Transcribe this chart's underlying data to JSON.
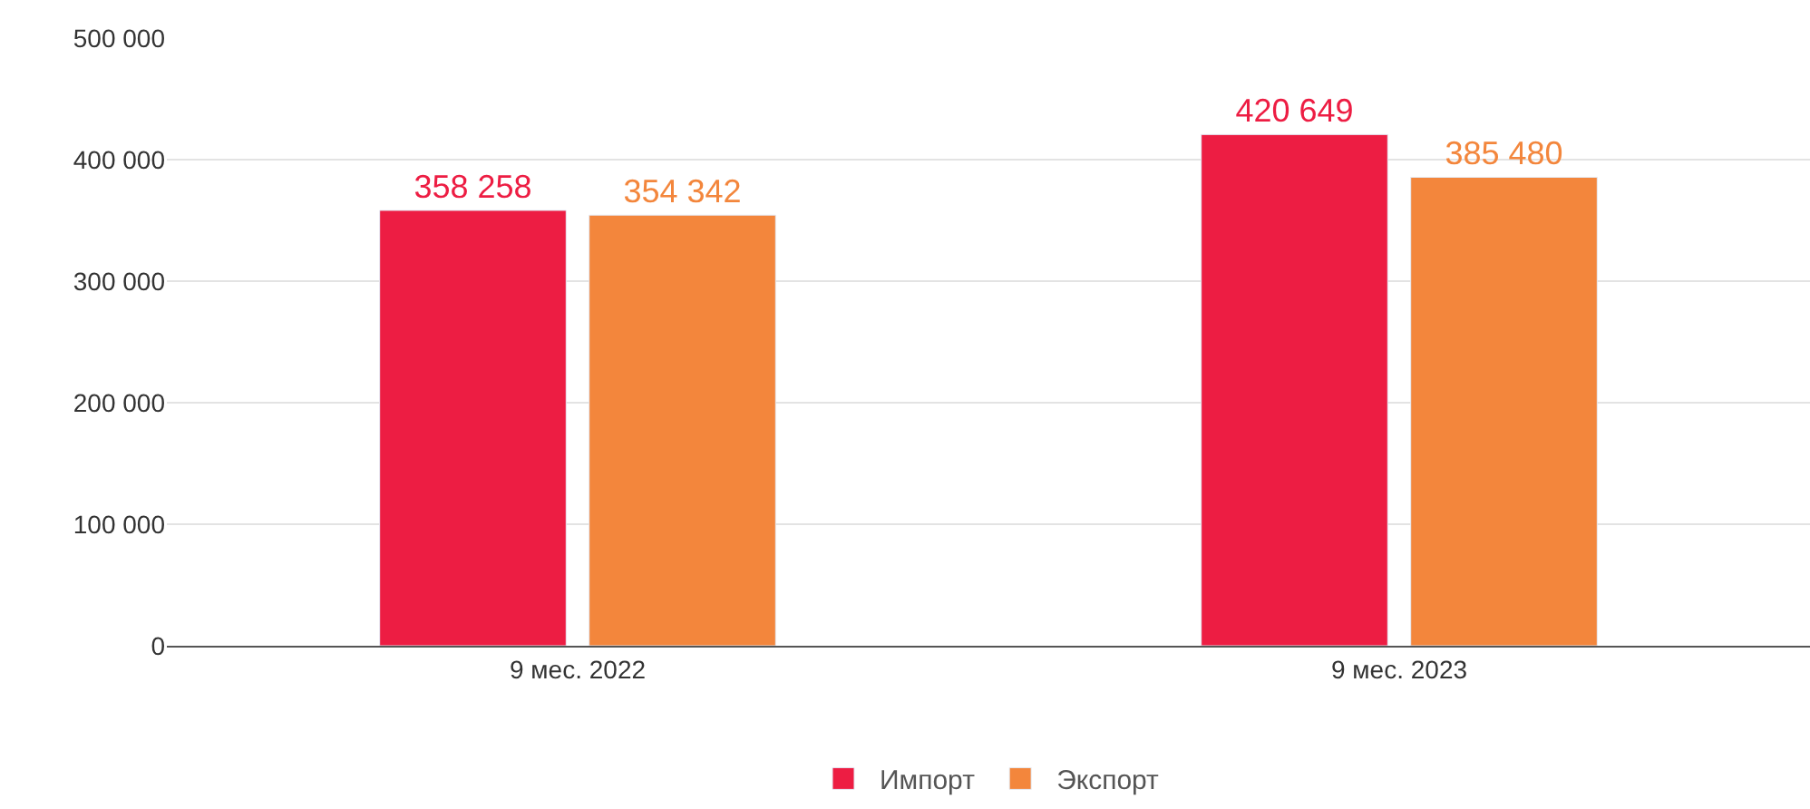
{
  "chart_data": {
    "type": "bar",
    "categories": [
      "9 мес. 2022",
      "9 мес. 2023"
    ],
    "series": [
      {
        "name": "Импорт",
        "color": "#ed1d43",
        "values": [
          358258,
          420649
        ],
        "value_labels": [
          "358 258",
          "420 649"
        ]
      },
      {
        "name": "Экспорт",
        "color": "#f3863c",
        "values": [
          354342,
          385480
        ],
        "value_labels": [
          "354 342",
          "385 480"
        ]
      }
    ],
    "ylim": [
      0,
      500000
    ],
    "yticks": [
      {
        "value": 0,
        "label": "0"
      },
      {
        "value": 100000,
        "label": "100 000"
      },
      {
        "value": 200000,
        "label": "200 000"
      },
      {
        "value": 300000,
        "label": "300 000"
      },
      {
        "value": 400000,
        "label": "400 000"
      },
      {
        "value": 500000,
        "label": "500 000"
      }
    ],
    "grid": "y",
    "legend": "bottom"
  }
}
